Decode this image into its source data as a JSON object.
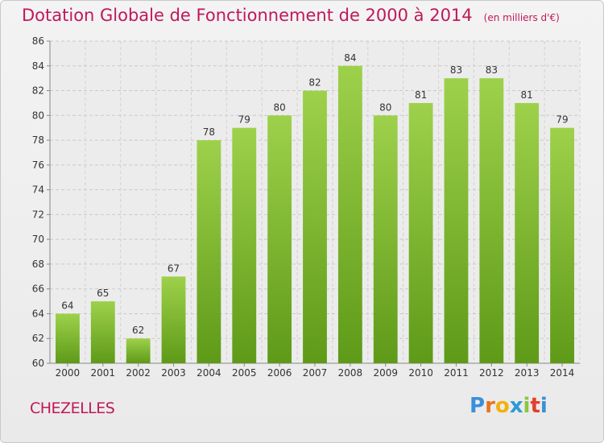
{
  "title": {
    "main": "Dotation Globale de Fonctionnement de 2000 à 2014",
    "unit": "(en milliers d'€)"
  },
  "commune": "CHEZELLES",
  "logo": {
    "letters": [
      "P",
      "r",
      "o",
      "x",
      "i",
      "t",
      "i"
    ],
    "colors": [
      "#3a8fd8",
      "#e8731c",
      "#f2b10f",
      "#2f9ad6",
      "#8dc63f",
      "#e2402c",
      "#3a8fd8"
    ]
  },
  "colors": {
    "bar_top": "#9ed14b",
    "bar_bottom": "#5e9a18",
    "title": "#c0185a"
  },
  "chart_data": {
    "type": "bar",
    "title": "Dotation Globale de Fonctionnement de 2000 à 2014",
    "xlabel": "",
    "ylabel": "",
    "categories": [
      "2000",
      "2001",
      "2002",
      "2003",
      "2004",
      "2005",
      "2006",
      "2007",
      "2008",
      "2009",
      "2010",
      "2011",
      "2012",
      "2013",
      "2014"
    ],
    "values": [
      64,
      65,
      62,
      67,
      78,
      79,
      80,
      82,
      84,
      80,
      81,
      83,
      83,
      81,
      79
    ],
    "ylim": [
      60,
      86
    ],
    "yticks": [
      60,
      62,
      64,
      66,
      68,
      70,
      72,
      74,
      76,
      78,
      80,
      82,
      84,
      86
    ],
    "grid": true
  }
}
